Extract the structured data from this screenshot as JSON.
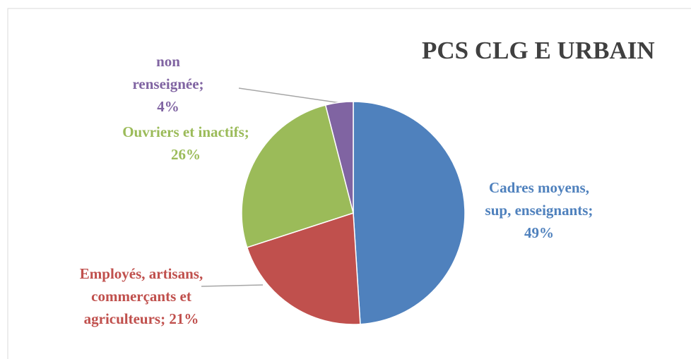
{
  "chart_data": {
    "type": "pie",
    "title": "PCS CLG E URBAIN",
    "values": [
      49,
      21,
      26,
      4
    ],
    "value_labels": [
      "Cadres moyens, sup, enseignants; 49%",
      "Employés, artisans, commerçants et agriculteurs; 21%",
      "Ouvriers et inactifs; 26%",
      "non renseignée; 4%"
    ],
    "colors": [
      "#4f81bd",
      "#c0504d",
      "#9bbb59",
      "#8064a2"
    ]
  }
}
